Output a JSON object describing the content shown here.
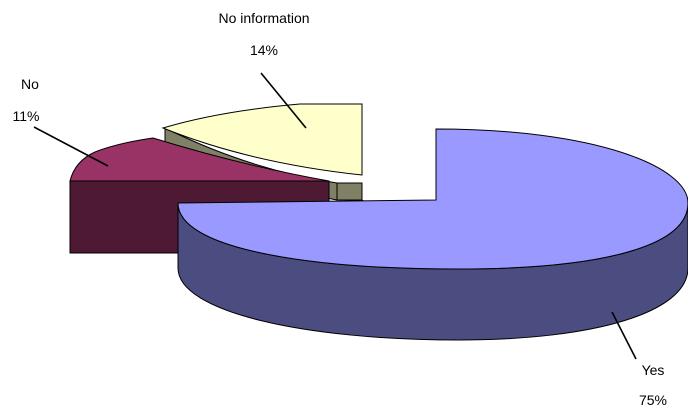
{
  "chart_data": {
    "type": "pie",
    "style": "3d-exploded",
    "slices": [
      {
        "label": "Yes",
        "value": 75,
        "value_label": "75%",
        "color": "#9999FF",
        "side_color": "#4B4C80"
      },
      {
        "label": "No",
        "value": 11,
        "value_label": "11%",
        "color": "#993366",
        "side_color": "#4E1A33"
      },
      {
        "label": "No information",
        "value": 14,
        "value_label": "14%",
        "color": "#FFFFCC",
        "side_color": "#808066"
      }
    ]
  }
}
